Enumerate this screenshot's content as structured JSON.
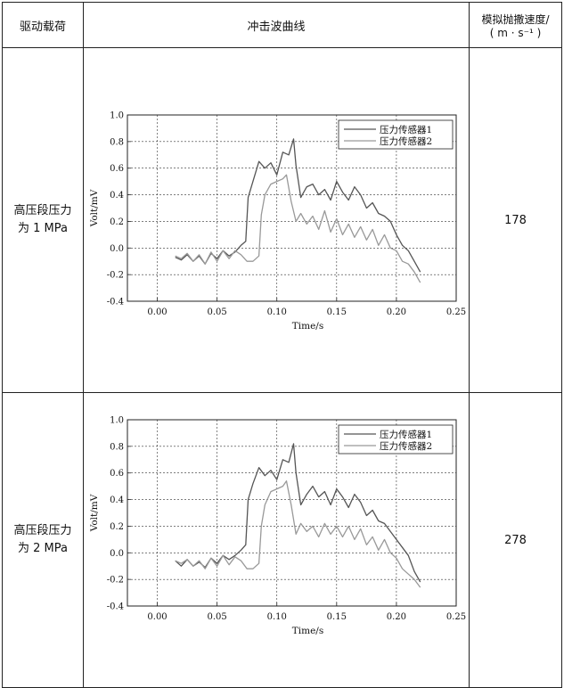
{
  "table": {
    "headers": {
      "col1": "驱动载荷",
      "col2": "冲击波曲线",
      "col3_line1": "模拟抛撒速度/",
      "col3_line2": "( m · s⁻¹ )"
    },
    "rows": [
      {
        "load_line1": "高压段压力",
        "load_line2": "为 1 MPa",
        "speed": "178"
      },
      {
        "load_line1": "高压段压力",
        "load_line2": "为 2 MPa",
        "speed": "278"
      }
    ]
  },
  "chart_data": [
    {
      "type": "line",
      "xlabel": "Time/s",
      "ylabel": "Volt/mV",
      "xlim": [
        -0.025,
        0.25
      ],
      "ylim": [
        -0.4,
        1.0
      ],
      "xticks": [
        "0.00",
        "0.05",
        "0.10",
        "0.15",
        "0.20",
        "0.25"
      ],
      "yticks": [
        "-0.4",
        "-0.2",
        "0.0",
        "0.2",
        "0.4",
        "0.6",
        "0.8",
        "1.0"
      ],
      "grid": true,
      "legend": "top-right",
      "series": [
        {
          "name": "压力传感器1",
          "color": "#555555",
          "x": [
            0.015,
            0.02,
            0.025,
            0.03,
            0.035,
            0.04,
            0.045,
            0.05,
            0.055,
            0.06,
            0.065,
            0.07,
            0.074,
            0.076,
            0.08,
            0.085,
            0.09,
            0.095,
            0.1,
            0.105,
            0.11,
            0.114,
            0.116,
            0.12,
            0.125,
            0.13,
            0.135,
            0.14,
            0.145,
            0.15,
            0.155,
            0.16,
            0.165,
            0.17,
            0.175,
            0.18,
            0.185,
            0.19,
            0.195,
            0.2,
            0.205,
            0.21,
            0.215,
            0.22
          ],
          "y": [
            -0.07,
            -0.09,
            -0.05,
            -0.1,
            -0.06,
            -0.12,
            -0.04,
            -0.08,
            -0.02,
            -0.06,
            -0.03,
            0.02,
            0.05,
            0.38,
            0.5,
            0.65,
            0.6,
            0.64,
            0.55,
            0.72,
            0.7,
            0.82,
            0.62,
            0.38,
            0.46,
            0.48,
            0.4,
            0.44,
            0.36,
            0.5,
            0.42,
            0.36,
            0.46,
            0.4,
            0.3,
            0.34,
            0.26,
            0.24,
            0.2,
            0.1,
            0.02,
            -0.02,
            -0.1,
            -0.18
          ]
        },
        {
          "name": "压力传感器2",
          "color": "#999999",
          "x": [
            0.015,
            0.02,
            0.025,
            0.03,
            0.035,
            0.04,
            0.045,
            0.05,
            0.055,
            0.06,
            0.065,
            0.07,
            0.075,
            0.08,
            0.085,
            0.087,
            0.09,
            0.095,
            0.1,
            0.105,
            0.108,
            0.112,
            0.116,
            0.12,
            0.125,
            0.13,
            0.135,
            0.14,
            0.145,
            0.15,
            0.155,
            0.16,
            0.165,
            0.17,
            0.175,
            0.18,
            0.185,
            0.19,
            0.195,
            0.2,
            0.205,
            0.21,
            0.215,
            0.22
          ],
          "y": [
            -0.06,
            -0.08,
            -0.04,
            -0.1,
            -0.05,
            -0.12,
            -0.03,
            -0.1,
            -0.02,
            -0.08,
            -0.02,
            -0.05,
            -0.1,
            -0.1,
            -0.06,
            0.25,
            0.4,
            0.48,
            0.5,
            0.52,
            0.55,
            0.35,
            0.2,
            0.26,
            0.18,
            0.24,
            0.14,
            0.28,
            0.12,
            0.22,
            0.1,
            0.18,
            0.08,
            0.16,
            0.06,
            0.14,
            0.02,
            0.1,
            0.0,
            -0.02,
            -0.1,
            -0.12,
            -0.18,
            -0.26
          ]
        }
      ]
    },
    {
      "type": "line",
      "xlabel": "Time/s",
      "ylabel": "Volt/mV",
      "xlim": [
        -0.025,
        0.25
      ],
      "ylim": [
        -0.4,
        1.0
      ],
      "xticks": [
        "0.00",
        "0.05",
        "0.10",
        "0.15",
        "0.20",
        "0.25"
      ],
      "yticks": [
        "-0.4",
        "-0.2",
        "0.0",
        "0.2",
        "0.4",
        "0.6",
        "0.8",
        "1.0"
      ],
      "grid": true,
      "legend": "top-right",
      "series": [
        {
          "name": "压力传感器1",
          "color": "#555555",
          "x": [
            0.015,
            0.02,
            0.025,
            0.03,
            0.035,
            0.04,
            0.045,
            0.05,
            0.055,
            0.06,
            0.065,
            0.07,
            0.074,
            0.076,
            0.08,
            0.085,
            0.09,
            0.095,
            0.1,
            0.105,
            0.11,
            0.114,
            0.116,
            0.12,
            0.125,
            0.13,
            0.135,
            0.14,
            0.145,
            0.15,
            0.155,
            0.16,
            0.165,
            0.17,
            0.175,
            0.18,
            0.185,
            0.19,
            0.195,
            0.2,
            0.205,
            0.21,
            0.215,
            0.22
          ],
          "y": [
            -0.06,
            -0.1,
            -0.05,
            -0.1,
            -0.07,
            -0.11,
            -0.04,
            -0.08,
            -0.02,
            -0.05,
            -0.02,
            0.02,
            0.06,
            0.4,
            0.52,
            0.64,
            0.58,
            0.62,
            0.55,
            0.7,
            0.68,
            0.82,
            0.6,
            0.36,
            0.44,
            0.5,
            0.42,
            0.46,
            0.36,
            0.48,
            0.42,
            0.34,
            0.44,
            0.38,
            0.28,
            0.32,
            0.24,
            0.22,
            0.16,
            0.1,
            0.04,
            -0.02,
            -0.14,
            -0.22
          ]
        },
        {
          "name": "压力传感器2",
          "color": "#999999",
          "x": [
            0.015,
            0.02,
            0.025,
            0.03,
            0.035,
            0.04,
            0.045,
            0.05,
            0.055,
            0.06,
            0.065,
            0.07,
            0.075,
            0.08,
            0.085,
            0.087,
            0.09,
            0.095,
            0.1,
            0.105,
            0.108,
            0.112,
            0.116,
            0.12,
            0.125,
            0.13,
            0.135,
            0.14,
            0.145,
            0.15,
            0.155,
            0.16,
            0.165,
            0.17,
            0.175,
            0.18,
            0.185,
            0.19,
            0.195,
            0.2,
            0.205,
            0.21,
            0.215,
            0.22
          ],
          "y": [
            -0.06,
            -0.08,
            -0.05,
            -0.1,
            -0.06,
            -0.12,
            -0.04,
            -0.1,
            -0.02,
            -0.09,
            -0.03,
            -0.06,
            -0.12,
            -0.12,
            -0.08,
            0.2,
            0.36,
            0.46,
            0.48,
            0.5,
            0.54,
            0.36,
            0.14,
            0.22,
            0.16,
            0.2,
            0.12,
            0.22,
            0.14,
            0.2,
            0.12,
            0.2,
            0.1,
            0.18,
            0.06,
            0.12,
            0.02,
            0.1,
            0.0,
            -0.04,
            -0.12,
            -0.16,
            -0.2,
            -0.26
          ]
        }
      ]
    }
  ]
}
